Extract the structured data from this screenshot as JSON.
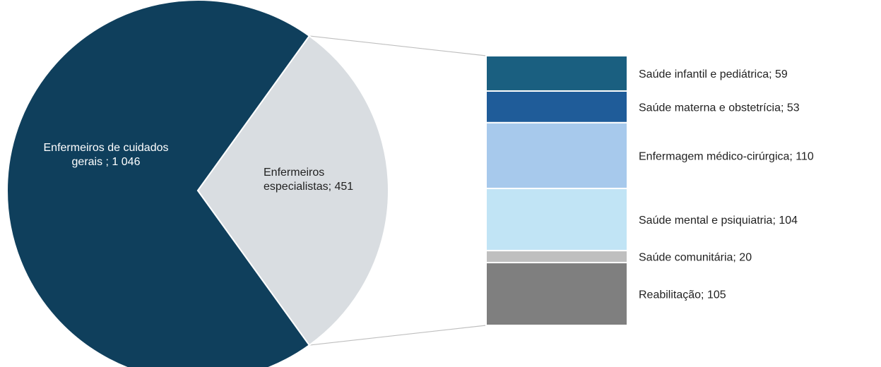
{
  "chart_data": {
    "type": "pie",
    "pie": {
      "slices": [
        {
          "label_line1": "Enfermeiros de cuidados",
          "label_line2": "gerais ; 1 046",
          "value": 1046,
          "color": "#0f3f5c"
        },
        {
          "label_line1": "Enfermeiros",
          "label_line2": "especialistas;  451",
          "value": 451,
          "color": "#d9dde1"
        }
      ]
    },
    "breakdown": {
      "of": "Enfermeiros especialistas",
      "items": [
        {
          "label": "Saúde infantil e pediátrica;  59",
          "value": 59,
          "color": "#1a5f80"
        },
        {
          "label": "Saúde materna e obstetrícia;  53",
          "value": 53,
          "color": "#1f5c99"
        },
        {
          "label": "Enfermagem médico-cirúrgica;  110",
          "value": 110,
          "color": "#a7c9ec"
        },
        {
          "label": "Saúde mental e psiquiatria;  104",
          "value": 104,
          "color": "#c1e4f5"
        },
        {
          "label": "Saúde comunitária;  20",
          "value": 20,
          "color": "#bfbfbf"
        },
        {
          "label": "Reabilitação;  105",
          "value": 105,
          "color": "#7f7f7f"
        }
      ]
    },
    "connector_color": "#bfbfbf"
  }
}
